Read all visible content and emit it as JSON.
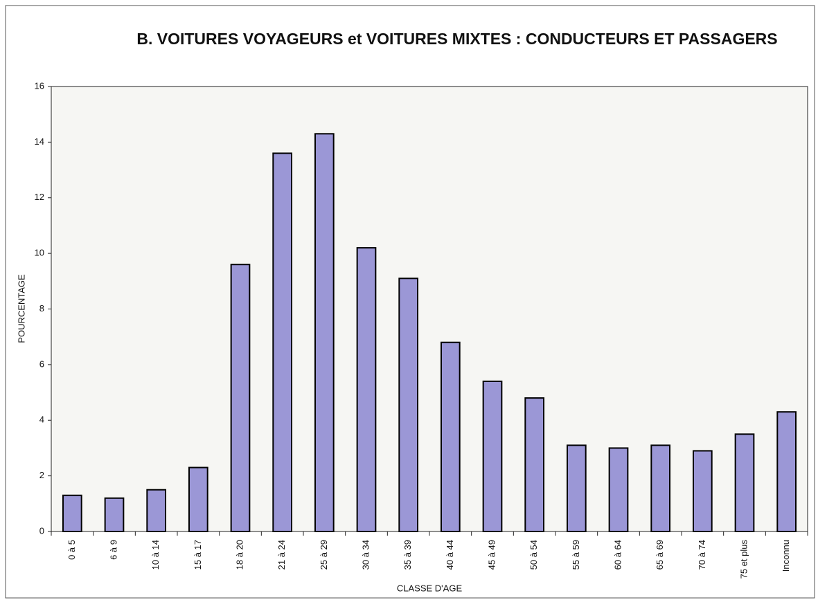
{
  "chart_data": {
    "type": "bar",
    "title": "B. VOITURES VOYAGEURS et VOITURES MIXTES : CONDUCTEURS ET PASSAGERS",
    "x_label": "CLASSE D'AGE",
    "y_label": "POURCENTAGE",
    "categories": [
      "0 à 5",
      "6 à 9",
      "10 à 14",
      "15 à 17",
      "18 à 20",
      "21 à 24",
      "25 à 29",
      "30 à 34",
      "35 à 39",
      "40 à 44",
      "45 à 49",
      "50 à 54",
      "55 à 59",
      "60 à 64",
      "65 à 69",
      "70 à 74",
      "75 et plus",
      "Inconnu"
    ],
    "values": [
      1.3,
      1.2,
      1.5,
      2.3,
      9.6,
      13.6,
      14.3,
      10.2,
      9.1,
      6.8,
      5.4,
      4.8,
      3.1,
      3.0,
      3.1,
      2.9,
      3.5,
      4.3
    ],
    "color": "#9b97d6",
    "ylim": [
      0,
      16
    ],
    "yticks": [
      0,
      2,
      4,
      6,
      8,
      10,
      12,
      14,
      16
    ],
    "grid": false
  }
}
